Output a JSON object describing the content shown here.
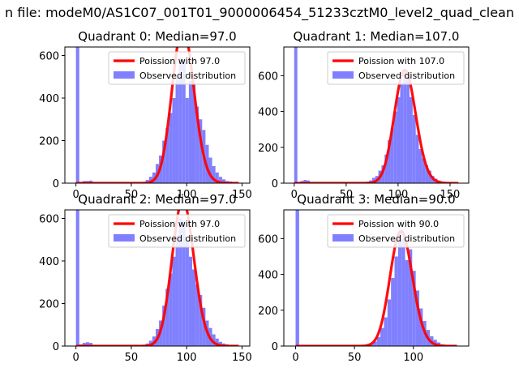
{
  "figure": {
    "suptitle": "n file: modeM0/AS1C07_001T01_9000006454_51233cztM0_level2_quad_clean"
  },
  "colors": {
    "poisson_line": "#ff0000",
    "observed_bars": "#8080ff",
    "axes": "#000000"
  },
  "chart_data": [
    {
      "type": "bar",
      "title": "Quadrant 0: Median=97.0",
      "xlim": [
        -10,
        157
      ],
      "ylim": [
        0,
        640
      ],
      "xticks": [
        0,
        50,
        100,
        150
      ],
      "yticks": [
        0,
        200,
        400,
        600
      ],
      "legend_placement": "top-right",
      "series": [
        {
          "name": "Poission with 97.0",
          "kind": "line",
          "lambda": 97.0
        },
        {
          "name": "Observed distribution",
          "kind": "histogram",
          "bin_width": 3,
          "bins": [
            [
              0,
              640
            ],
            [
              3,
              5
            ],
            [
              6,
              10
            ],
            [
              9,
              10
            ],
            [
              12,
              12
            ],
            [
              15,
              5
            ],
            [
              18,
              3
            ],
            [
              21,
              2
            ],
            [
              24,
              2
            ],
            [
              27,
              2
            ],
            [
              30,
              2
            ],
            [
              33,
              2
            ],
            [
              36,
              2
            ],
            [
              39,
              2
            ],
            [
              42,
              2
            ],
            [
              45,
              2
            ],
            [
              48,
              2
            ],
            [
              51,
              2
            ],
            [
              54,
              2
            ],
            [
              57,
              3
            ],
            [
              60,
              5
            ],
            [
              63,
              15
            ],
            [
              66,
              30
            ],
            [
              69,
              50
            ],
            [
              72,
              90
            ],
            [
              75,
              130
            ],
            [
              78,
              200
            ],
            [
              81,
              260
            ],
            [
              84,
              330
            ],
            [
              87,
              400
            ],
            [
              90,
              500
            ],
            [
              93,
              590
            ],
            [
              96,
              580
            ],
            [
              99,
              400
            ],
            [
              102,
              480
            ],
            [
              105,
              470
            ],
            [
              108,
              360
            ],
            [
              111,
              300
            ],
            [
              114,
              250
            ],
            [
              117,
              180
            ],
            [
              120,
              120
            ],
            [
              123,
              80
            ],
            [
              126,
              50
            ],
            [
              129,
              30
            ],
            [
              132,
              18
            ],
            [
              135,
              10
            ],
            [
              138,
              8
            ],
            [
              141,
              5
            ],
            [
              144,
              3
            ]
          ]
        }
      ]
    },
    {
      "type": "bar",
      "title": "Quadrant 1: Median=107.0",
      "xlim": [
        -10,
        168
      ],
      "ylim": [
        0,
        760
      ],
      "xticks": [
        0,
        50,
        100,
        150
      ],
      "yticks": [
        0,
        200,
        400,
        600
      ],
      "legend_placement": "top-right",
      "series": [
        {
          "name": "Poission with 107.0",
          "kind": "line",
          "lambda": 107.0
        },
        {
          "name": "Observed distribution",
          "kind": "histogram",
          "bin_width": 3,
          "bins": [
            [
              0,
              760
            ],
            [
              3,
              5
            ],
            [
              6,
              12
            ],
            [
              9,
              18
            ],
            [
              12,
              15
            ],
            [
              15,
              5
            ],
            [
              18,
              3
            ],
            [
              21,
              2
            ],
            [
              24,
              2
            ],
            [
              27,
              2
            ],
            [
              30,
              2
            ],
            [
              33,
              2
            ],
            [
              36,
              2
            ],
            [
              39,
              2
            ],
            [
              42,
              2
            ],
            [
              45,
              2
            ],
            [
              48,
              2
            ],
            [
              51,
              2
            ],
            [
              54,
              2
            ],
            [
              57,
              2
            ],
            [
              60,
              2
            ],
            [
              63,
              3
            ],
            [
              66,
              5
            ],
            [
              69,
              8
            ],
            [
              72,
              15
            ],
            [
              75,
              30
            ],
            [
              78,
              40
            ],
            [
              81,
              70
            ],
            [
              84,
              100
            ],
            [
              87,
              160
            ],
            [
              90,
              240
            ],
            [
              93,
              310
            ],
            [
              96,
              400
            ],
            [
              99,
              480
            ],
            [
              102,
              560
            ],
            [
              105,
              620
            ],
            [
              108,
              600
            ],
            [
              111,
              480
            ],
            [
              114,
              380
            ],
            [
              117,
              270
            ],
            [
              120,
              190
            ],
            [
              123,
              140
            ],
            [
              126,
              100
            ],
            [
              129,
              70
            ],
            [
              132,
              40
            ],
            [
              135,
              25
            ],
            [
              138,
              15
            ],
            [
              141,
              8
            ],
            [
              144,
              5
            ],
            [
              147,
              3
            ]
          ]
        }
      ]
    },
    {
      "type": "bar",
      "title": "Quadrant 2: Median=97.0",
      "xlim": [
        -10,
        157
      ],
      "ylim": [
        0,
        640
      ],
      "xticks": [
        0,
        50,
        100,
        150
      ],
      "yticks": [
        0,
        200,
        400,
        600
      ],
      "legend_placement": "top-right",
      "series": [
        {
          "name": "Poission with 97.0",
          "kind": "line",
          "lambda": 97.0
        },
        {
          "name": "Observed distribution",
          "kind": "histogram",
          "bin_width": 3,
          "bins": [
            [
              0,
              640
            ],
            [
              3,
              8
            ],
            [
              6,
              15
            ],
            [
              9,
              18
            ],
            [
              12,
              15
            ],
            [
              15,
              5
            ],
            [
              18,
              3
            ],
            [
              21,
              2
            ],
            [
              24,
              2
            ],
            [
              27,
              2
            ],
            [
              30,
              2
            ],
            [
              33,
              2
            ],
            [
              36,
              2
            ],
            [
              39,
              2
            ],
            [
              42,
              2
            ],
            [
              45,
              2
            ],
            [
              48,
              2
            ],
            [
              51,
              2
            ],
            [
              54,
              2
            ],
            [
              57,
              3
            ],
            [
              60,
              5
            ],
            [
              63,
              12
            ],
            [
              66,
              25
            ],
            [
              69,
              45
            ],
            [
              72,
              80
            ],
            [
              75,
              120
            ],
            [
              78,
              190
            ],
            [
              81,
              270
            ],
            [
              84,
              340
            ],
            [
              87,
              420
            ],
            [
              90,
              520
            ],
            [
              93,
              600
            ],
            [
              96,
              590
            ],
            [
              99,
              500
            ],
            [
              102,
              420
            ],
            [
              105,
              360
            ],
            [
              108,
              290
            ],
            [
              111,
              240
            ],
            [
              114,
              180
            ],
            [
              117,
              120
            ],
            [
              120,
              85
            ],
            [
              123,
              55
            ],
            [
              126,
              35
            ],
            [
              129,
              20
            ],
            [
              132,
              12
            ],
            [
              135,
              8
            ],
            [
              138,
              5
            ],
            [
              141,
              3
            ]
          ]
        }
      ]
    },
    {
      "type": "bar",
      "title": "Quadrant 3: Median=90.0",
      "xlim": [
        -10,
        147
      ],
      "ylim": [
        0,
        760
      ],
      "xticks": [
        0,
        50,
        100
      ],
      "yticks": [
        0,
        200,
        400,
        600
      ],
      "legend_placement": "top-right",
      "series": [
        {
          "name": "Poission with 90.0",
          "kind": "line",
          "lambda": 90.0
        },
        {
          "name": "Observed distribution",
          "kind": "histogram",
          "bin_width": 3,
          "bins": [
            [
              0,
              760
            ],
            [
              3,
              3
            ],
            [
              6,
              2
            ],
            [
              9,
              2
            ],
            [
              12,
              2
            ],
            [
              15,
              2
            ],
            [
              18,
              2
            ],
            [
              21,
              2
            ],
            [
              24,
              2
            ],
            [
              27,
              2
            ],
            [
              30,
              2
            ],
            [
              33,
              2
            ],
            [
              36,
              2
            ],
            [
              39,
              2
            ],
            [
              42,
              2
            ],
            [
              45,
              2
            ],
            [
              48,
              2
            ],
            [
              51,
              2
            ],
            [
              54,
              2
            ],
            [
              57,
              3
            ],
            [
              60,
              5
            ],
            [
              63,
              12
            ],
            [
              66,
              25
            ],
            [
              69,
              50
            ],
            [
              72,
              100
            ],
            [
              75,
              160
            ],
            [
              78,
              260
            ],
            [
              81,
              380
            ],
            [
              84,
              500
            ],
            [
              87,
              640
            ],
            [
              90,
              600
            ],
            [
              93,
              480
            ],
            [
              96,
              540
            ],
            [
              99,
              420
            ],
            [
              102,
              310
            ],
            [
              105,
              210
            ],
            [
              108,
              140
            ],
            [
              111,
              90
            ],
            [
              114,
              55
            ],
            [
              117,
              35
            ],
            [
              120,
              20
            ],
            [
              123,
              10
            ],
            [
              126,
              5
            ],
            [
              129,
              3
            ]
          ]
        }
      ]
    }
  ]
}
